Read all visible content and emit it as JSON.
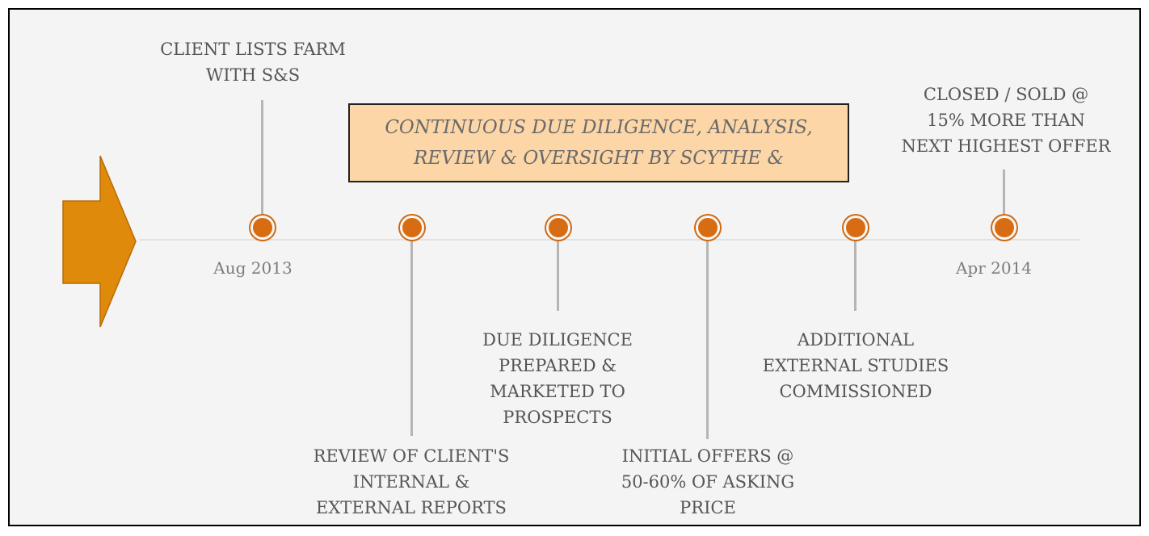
{
  "banner": {
    "line1": "CONTINUOUS DUE DILIGENCE, ANALYSIS,",
    "line2": "REVIEW & OVERSIGHT BY SCYTHE &"
  },
  "start_date": "Aug 2013",
  "end_date": "Apr 2014",
  "milestones": [
    {
      "lines": [
        "CLIENT LISTS FARM",
        "WITH S&S"
      ]
    },
    {
      "lines": [
        "REVIEW OF CLIENT'S",
        "INTERNAL &",
        "EXTERNAL REPORTS"
      ]
    },
    {
      "lines": [
        "DUE DILIGENCE",
        "PREPARED &",
        "MARKETED TO",
        "PROSPECTS"
      ]
    },
    {
      "lines": [
        "INITIAL OFFERS @",
        "50-60% OF ASKING",
        "PRICE"
      ]
    },
    {
      "lines": [
        "ADDITIONAL",
        "EXTERNAL STUDIES",
        "COMMISSIONED"
      ]
    },
    {
      "lines": [
        "CLOSED / SOLD @",
        "15% MORE THAN",
        "NEXT HIGHEST OFFER"
      ]
    }
  ],
  "colors": {
    "accent": "#d86c12",
    "arrow": "#e08a0c",
    "banner_fill": "#fcd6a7",
    "connector": "#b5b5b5"
  }
}
